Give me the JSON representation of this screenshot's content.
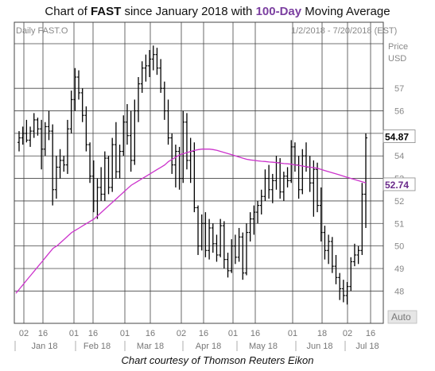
{
  "header": {
    "title_prefix": "Chart of ",
    "ticker": "FAST",
    "title_middle": " since January 2018 with ",
    "ma_label": "100-Day",
    "title_suffix": " Moving Average"
  },
  "caption": "Chart courtesy of Thomson Reuters Eikon",
  "colors": {
    "price": "#000000",
    "ma": "#cc33cc",
    "grid": "#444444",
    "label_bg": "#e6e6e6"
  },
  "chart_data": {
    "type": "ohlc",
    "symbol_label": "Daily FAST.O",
    "date_range_label": "1/2/2018 - 7/20/2018 (EST)",
    "axis_unit_label": [
      "Price",
      "USD"
    ],
    "ylim": [
      47.2,
      59.3
    ],
    "y_ticks": [
      48,
      49,
      50,
      51,
      52,
      53,
      54,
      55,
      56,
      57
    ],
    "y_tick_labels": [
      "48",
      "49",
      "50",
      "51",
      "52",
      "53",
      "54",
      "55",
      "56",
      "57"
    ],
    "x_ticks": [
      "02",
      "16",
      "01",
      "16",
      "01",
      "16",
      "02",
      "16",
      "01",
      "16",
      "01",
      "18",
      "02",
      "16"
    ],
    "month_labels": [
      "Jan 18",
      "Feb 18",
      "Mar 18",
      "Apr 18",
      "May 18",
      "Jun 18",
      "Jul 18"
    ],
    "auto_label": "Auto",
    "last_price": {
      "value": 54.87,
      "label": "54.87"
    },
    "moving_average": {
      "name": "100-Day",
      "last": {
        "value": 52.74,
        "label": "52.74"
      },
      "values": [
        47.9,
        48.1,
        48.3,
        48.5,
        48.7,
        48.9,
        49.1,
        49.3,
        49.5,
        49.7,
        49.9,
        50.0,
        50.15,
        50.3,
        50.45,
        50.6,
        50.7,
        50.8,
        50.9,
        51.0,
        51.1,
        51.2,
        51.35,
        51.5,
        51.65,
        51.8,
        51.95,
        52.1,
        52.25,
        52.4,
        52.55,
        52.7,
        52.8,
        52.9,
        53.0,
        53.1,
        53.2,
        53.3,
        53.4,
        53.5,
        53.6,
        53.75,
        53.85,
        53.95,
        54.05,
        54.1,
        54.15,
        54.2,
        54.25,
        54.28,
        54.3,
        54.3,
        54.3,
        54.28,
        54.25,
        54.2,
        54.15,
        54.1,
        54.05,
        54.0,
        53.95,
        53.9,
        53.85,
        53.82,
        53.8,
        53.78,
        53.76,
        53.75,
        53.73,
        53.72,
        53.7,
        53.68,
        53.66,
        53.65,
        53.63,
        53.6,
        53.58,
        53.55,
        53.52,
        53.5,
        53.48,
        53.45,
        53.4,
        53.35,
        53.3,
        53.25,
        53.2,
        53.15,
        53.1,
        53.05,
        53.0,
        52.95,
        52.9,
        52.85,
        52.8
      ]
    },
    "ohlc": [
      [
        54.6,
        55.1,
        54.2,
        54.8
      ],
      [
        54.8,
        55.3,
        54.5,
        55.0
      ],
      [
        55.0,
        55.6,
        54.6,
        54.7
      ],
      [
        54.7,
        55.3,
        54.4,
        55.1
      ],
      [
        55.1,
        55.9,
        54.8,
        55.6
      ],
      [
        55.6,
        55.7,
        54.9,
        55.2
      ],
      [
        55.2,
        55.6,
        53.4,
        54.3
      ],
      [
        54.3,
        55.5,
        54.0,
        55.3
      ],
      [
        55.3,
        56.0,
        54.7,
        55.1
      ],
      [
        55.1,
        55.4,
        51.8,
        52.5
      ],
      [
        52.5,
        54.0,
        52.1,
        53.5
      ],
      [
        53.5,
        54.3,
        53.0,
        53.8
      ],
      [
        53.8,
        54.0,
        53.3,
        53.6
      ],
      [
        53.6,
        55.6,
        53.2,
        55.2
      ],
      [
        55.2,
        56.9,
        55.0,
        56.5
      ],
      [
        56.5,
        57.9,
        56.0,
        57.5
      ],
      [
        57.5,
        57.8,
        56.5,
        56.8
      ],
      [
        56.8,
        57.0,
        55.5,
        55.8
      ],
      [
        55.8,
        56.2,
        54.2,
        54.5
      ],
      [
        54.5,
        54.6,
        52.8,
        53.1
      ],
      [
        53.1,
        53.8,
        51.5,
        52.0
      ],
      [
        52.0,
        53.0,
        51.2,
        52.6
      ],
      [
        52.6,
        53.5,
        52.0,
        52.3
      ],
      [
        52.3,
        54.2,
        52.0,
        53.9
      ],
      [
        53.9,
        54.0,
        52.3,
        52.6
      ],
      [
        52.6,
        54.8,
        52.4,
        54.5
      ],
      [
        54.5,
        55.5,
        53.0,
        53.3
      ],
      [
        53.3,
        54.5,
        53.0,
        54.2
      ],
      [
        54.2,
        55.8,
        54.0,
        55.5
      ],
      [
        55.5,
        56.3,
        54.5,
        54.9
      ],
      [
        54.9,
        56.0,
        53.3,
        53.8
      ],
      [
        53.8,
        56.5,
        53.6,
        56.0
      ],
      [
        56.0,
        57.5,
        55.5,
        57.2
      ],
      [
        57.2,
        58.2,
        56.8,
        57.9
      ],
      [
        57.9,
        58.5,
        57.3,
        58.0
      ],
      [
        58.0,
        58.7,
        57.5,
        58.3
      ],
      [
        58.3,
        58.9,
        57.8,
        58.5
      ],
      [
        58.5,
        58.8,
        57.6,
        57.9
      ],
      [
        57.9,
        58.3,
        56.8,
        57.0
      ],
      [
        57.0,
        57.3,
        55.6,
        56.0
      ],
      [
        56.0,
        56.5,
        54.5,
        54.8
      ],
      [
        54.8,
        55.0,
        53.2,
        53.6
      ],
      [
        53.6,
        54.5,
        52.6,
        54.2
      ],
      [
        54.2,
        54.4,
        52.5,
        53.0
      ],
      [
        53.0,
        56.0,
        52.8,
        55.5
      ],
      [
        55.5,
        55.9,
        53.4,
        53.8
      ],
      [
        53.8,
        54.8,
        52.8,
        54.2
      ],
      [
        54.2,
        54.6,
        51.5,
        51.7
      ],
      [
        51.7,
        51.8,
        49.6,
        50.0
      ],
      [
        50.0,
        51.4,
        49.8,
        51.0
      ],
      [
        51.0,
        51.5,
        49.5,
        49.8
      ],
      [
        49.8,
        51.2,
        49.4,
        50.8
      ],
      [
        50.8,
        51.0,
        49.7,
        50.1
      ],
      [
        50.1,
        50.5,
        49.3,
        49.6
      ],
      [
        49.6,
        51.2,
        49.5,
        50.9
      ],
      [
        50.9,
        51.1,
        49.0,
        49.4
      ],
      [
        49.4,
        49.7,
        48.6,
        48.9
      ],
      [
        48.9,
        50.3,
        48.8,
        50.0
      ],
      [
        50.0,
        50.5,
        49.2,
        49.5
      ],
      [
        49.5,
        50.8,
        49.3,
        50.4
      ],
      [
        50.4,
        50.6,
        48.5,
        48.8
      ],
      [
        48.8,
        51.0,
        48.7,
        50.6
      ],
      [
        50.6,
        51.5,
        50.2,
        51.2
      ],
      [
        51.2,
        51.8,
        50.5,
        51.5
      ],
      [
        51.5,
        52.0,
        51.0,
        51.8
      ],
      [
        51.8,
        52.5,
        51.4,
        52.2
      ],
      [
        52.2,
        53.4,
        52.0,
        53.0
      ],
      [
        53.0,
        53.6,
        52.1,
        52.5
      ],
      [
        52.5,
        53.2,
        51.9,
        52.9
      ],
      [
        52.9,
        54.0,
        52.5,
        53.7
      ],
      [
        53.7,
        53.9,
        52.1,
        52.4
      ],
      [
        52.4,
        53.3,
        52.0,
        53.1
      ],
      [
        53.1,
        53.5,
        52.6,
        52.9
      ],
      [
        52.9,
        54.7,
        52.8,
        54.4
      ],
      [
        54.4,
        54.6,
        53.3,
        53.6
      ],
      [
        53.6,
        54.0,
        52.1,
        52.5
      ],
      [
        52.5,
        54.3,
        52.3,
        54.0
      ],
      [
        54.0,
        54.6,
        53.3,
        53.5
      ],
      [
        53.5,
        54.0,
        52.4,
        52.8
      ],
      [
        52.8,
        53.8,
        51.3,
        53.4
      ],
      [
        53.4,
        53.7,
        51.5,
        51.8
      ],
      [
        51.8,
        52.6,
        50.2,
        50.6
      ],
      [
        50.6,
        50.9,
        49.4,
        49.8
      ],
      [
        49.8,
        50.5,
        49.2,
        50.2
      ],
      [
        50.2,
        50.4,
        48.8,
        49.1
      ],
      [
        49.1,
        49.6,
        48.3,
        48.6
      ],
      [
        48.6,
        48.8,
        47.6,
        48.1
      ],
      [
        48.1,
        48.5,
        47.5,
        47.8
      ],
      [
        47.8,
        48.4,
        47.4,
        48.2
      ],
      [
        48.2,
        49.5,
        48.0,
        49.3
      ],
      [
        49.3,
        50.1,
        49.1,
        49.6
      ],
      [
        49.6,
        50.0,
        49.2,
        49.8
      ],
      [
        49.8,
        52.8,
        49.6,
        52.3
      ],
      [
        52.3,
        55.0,
        50.8,
        54.8
      ]
    ]
  }
}
